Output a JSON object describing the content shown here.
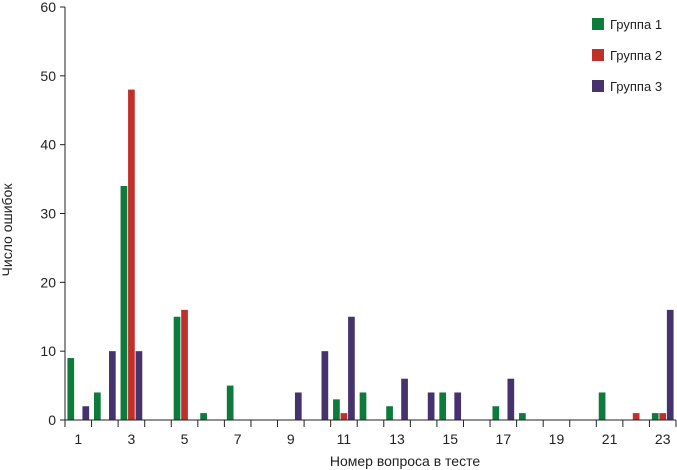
{
  "chart_data": {
    "type": "bar",
    "title": "",
    "xlabel": "Номер вопроса в тесте",
    "ylabel": "Число ошибок",
    "ylim": [
      0,
      60
    ],
    "yticks": [
      0,
      10,
      20,
      30,
      40,
      50,
      60
    ],
    "categories": [
      "1",
      "2",
      "3",
      "4",
      "5",
      "6",
      "7",
      "8",
      "9",
      "10",
      "11",
      "12",
      "13",
      "14",
      "15",
      "16",
      "17",
      "18",
      "19",
      "20",
      "21",
      "22",
      "23"
    ],
    "xtick_labels": [
      "1",
      "3",
      "5",
      "7",
      "9",
      "11",
      "13",
      "15",
      "17",
      "19",
      "21",
      "23"
    ],
    "grid": false,
    "legend_position": "top-right",
    "series": [
      {
        "name": "Группа 1",
        "color": "#0e7a3c",
        "values": [
          9,
          4,
          34,
          0,
          15,
          1,
          5,
          0,
          0,
          0,
          3,
          4,
          2,
          0,
          4,
          0,
          2,
          1,
          0,
          0,
          4,
          0,
          1
        ]
      },
      {
        "name": "Группа 2",
        "color": "#c0302a",
        "values": [
          0,
          0,
          48,
          0,
          16,
          0,
          0,
          0,
          0,
          0,
          1,
          0,
          0,
          0,
          0,
          0,
          0,
          0,
          0,
          0,
          0,
          1,
          1
        ]
      },
      {
        "name": "Группа 3",
        "color": "#46336e",
        "values": [
          2,
          10,
          10,
          0,
          0,
          0,
          0,
          0,
          4,
          10,
          15,
          0,
          6,
          4,
          4,
          0,
          6,
          0,
          0,
          0,
          0,
          0,
          16
        ]
      }
    ]
  }
}
